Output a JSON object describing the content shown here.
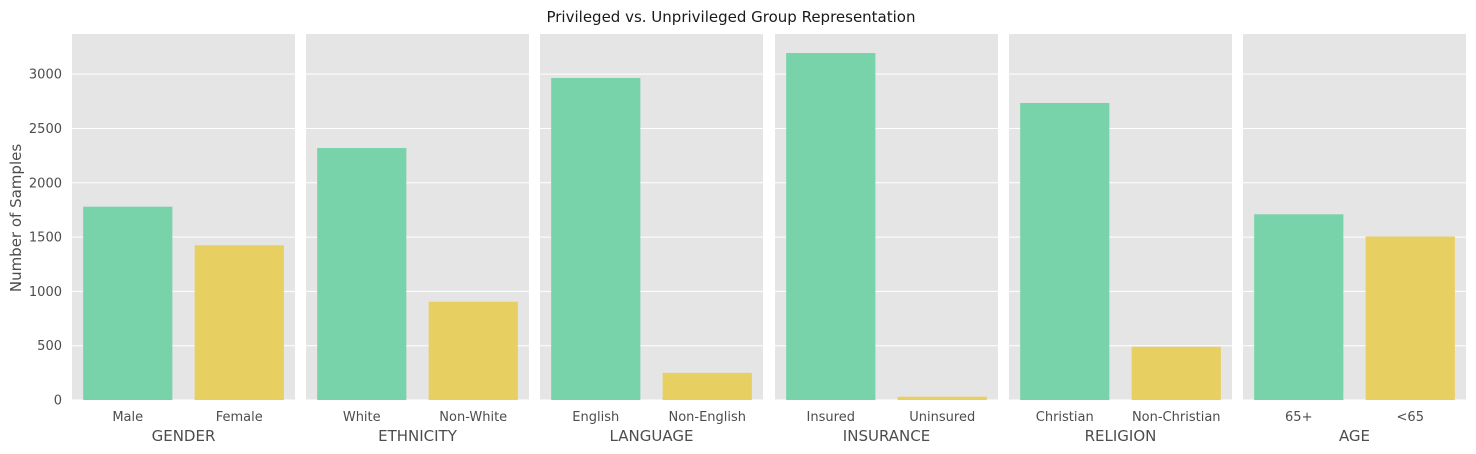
{
  "chart_data": {
    "type": "bar",
    "title": "Privileged vs. Unprivileged Group Representation",
    "ylabel": "Number of Samples",
    "ylim": [
      0,
      3370
    ],
    "yticks": [
      0,
      500,
      1000,
      1500,
      2000,
      2500,
      3000
    ],
    "grid": true,
    "colors": {
      "privileged": "#79d3aa",
      "unprivileged": "#e8cf62",
      "background": "#e5e5e5",
      "grid": "#ffffff"
    },
    "panels": [
      {
        "xlabel": "GENDER",
        "categories": [
          "Male",
          "Female"
        ],
        "values": [
          1780,
          1425
        ]
      },
      {
        "xlabel": "ETHNICITY",
        "categories": [
          "White",
          "Non-White"
        ],
        "values": [
          2320,
          905
        ]
      },
      {
        "xlabel": "LANGUAGE",
        "categories": [
          "English",
          "Non-English"
        ],
        "values": [
          2965,
          250
        ]
      },
      {
        "xlabel": "INSURANCE",
        "categories": [
          "Insured",
          "Uninsured"
        ],
        "values": [
          3195,
          30
        ]
      },
      {
        "xlabel": "RELIGION",
        "categories": [
          "Christian",
          "Non-Christian"
        ],
        "values": [
          2735,
          490
        ]
      },
      {
        "xlabel": "AGE",
        "categories": [
          "65+",
          "<65"
        ],
        "values": [
          1710,
          1505
        ]
      }
    ]
  }
}
